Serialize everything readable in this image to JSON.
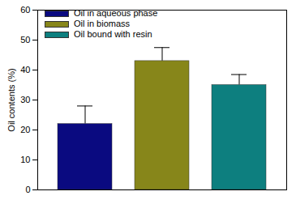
{
  "chart_data": {
    "type": "bar",
    "y_label": "Oil contents (%)",
    "categories": [
      "Oil in aqueous phase",
      "Oil in biomass",
      "Oil bound with resin"
    ],
    "values": [
      22,
      43,
      35
    ],
    "errors": [
      6,
      4.5,
      3.5
    ],
    "colors": [
      "#0a0a80",
      "#87861a",
      "#0d7f7f"
    ],
    "ylim": [
      0,
      60
    ],
    "yticks": [
      0,
      10,
      20,
      30,
      40,
      50,
      60
    ],
    "legend": "top-left",
    "tick_labels": "y",
    "grid": false
  }
}
